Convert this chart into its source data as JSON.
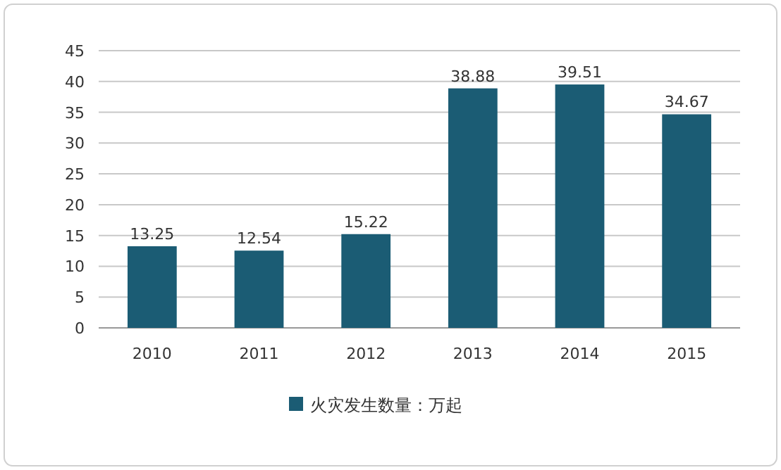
{
  "chart_data": {
    "type": "bar",
    "categories": [
      "2010",
      "2011",
      "2012",
      "2013",
      "2014",
      "2015"
    ],
    "series": [
      {
        "name": "火灾发生数量：万起",
        "color": "#1b5c74",
        "values": [
          13.25,
          12.54,
          15.22,
          38.88,
          39.51,
          34.67
        ]
      }
    ],
    "ylim": [
      0,
      45
    ],
    "yticks": [
      0,
      5,
      10,
      15,
      20,
      25,
      30,
      35,
      40,
      45
    ],
    "grid": "y",
    "legend": "bottom",
    "data_labels": true
  }
}
